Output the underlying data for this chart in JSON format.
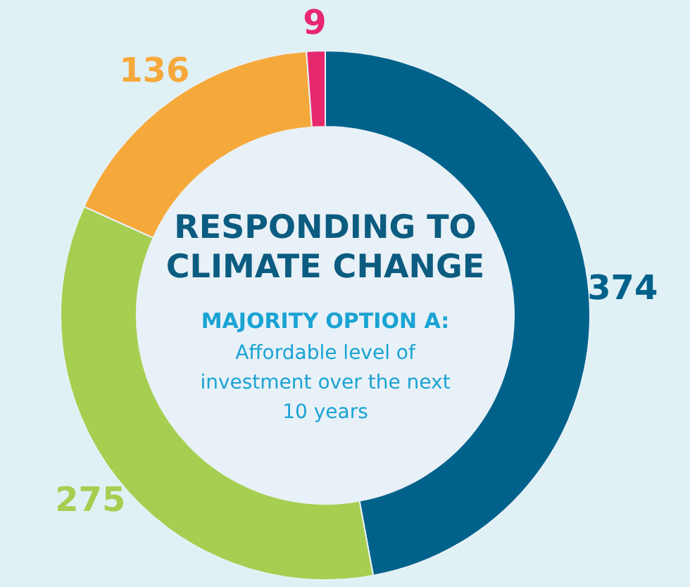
{
  "chart_data": {
    "type": "donut",
    "title": "RESPONDING TO CLIMATE CHANGE",
    "subtitle": "MAJORITY OPTION A:",
    "annotations": [
      "Affordable level of investment over the next 10 years"
    ],
    "categories": [
      null,
      null,
      null,
      null
    ],
    "values": [
      374,
      275,
      136,
      9
    ],
    "colors": [
      "#00628b",
      "#a6ce50",
      "#f6a93b",
      "#e8286e"
    ],
    "data_labels": true
  }
}
